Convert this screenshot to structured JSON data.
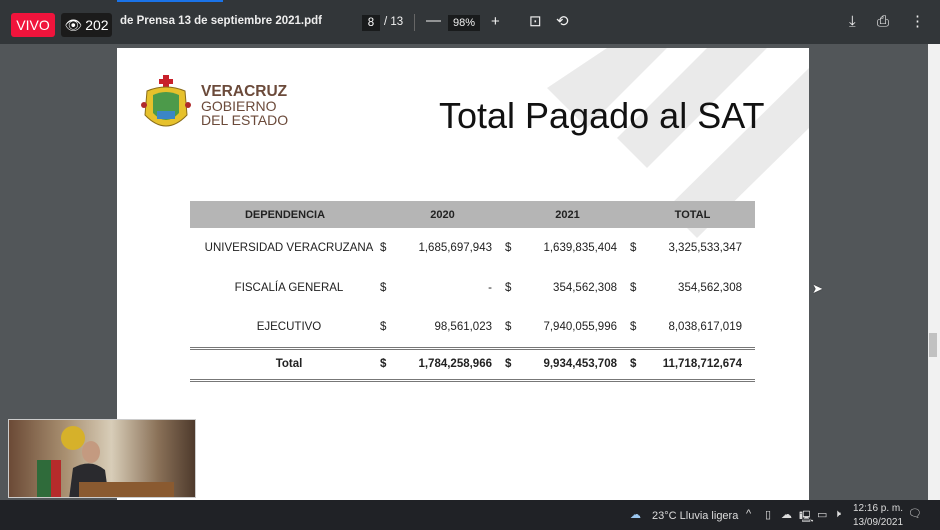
{
  "toolbar": {
    "file_title": "de Prensa 13 de septiembre 2021.pdf",
    "current_page": "8",
    "total_pages": "/ 13",
    "zoom": "98%",
    "icons": [
      "minus-icon",
      "plus-icon",
      "fit-page-icon",
      "rotate-icon",
      "download-icon",
      "print-icon",
      "more-icon"
    ]
  },
  "live": {
    "badge": "VIVO",
    "viewers": "202"
  },
  "slide": {
    "logo": {
      "line1": "VERACRUZ",
      "line2": "GOBIERNO",
      "line3": "DEL ESTADO"
    },
    "title": "Total Pagado al SAT",
    "table": {
      "headers": [
        "DEPENDENCIA",
        "2020",
        "2021",
        "TOTAL"
      ],
      "currency": "$",
      "rows": [
        {
          "name": "UNIVERSIDAD  VERACRUZANA",
          "y2020": "1,685,697,943",
          "y2021": "1,639,835,404",
          "total": "3,325,533,347"
        },
        {
          "name": "FISCALÍA GENERAL",
          "y2020": "-",
          "y2021": "354,562,308",
          "total": "354,562,308"
        },
        {
          "name": "EJECUTIVO",
          "y2020": "98,561,023",
          "y2021": "7,940,055,996",
          "total": "8,038,617,019"
        }
      ],
      "total": {
        "name": "Total",
        "y2020": "1,784,258,966",
        "y2021": "9,934,453,708",
        "total": "11,718,712,674"
      }
    }
  },
  "taskbar": {
    "weather": "23°C  Lluvia ligera",
    "time": "12:16 p. m.",
    "date": "13/09/2021"
  }
}
